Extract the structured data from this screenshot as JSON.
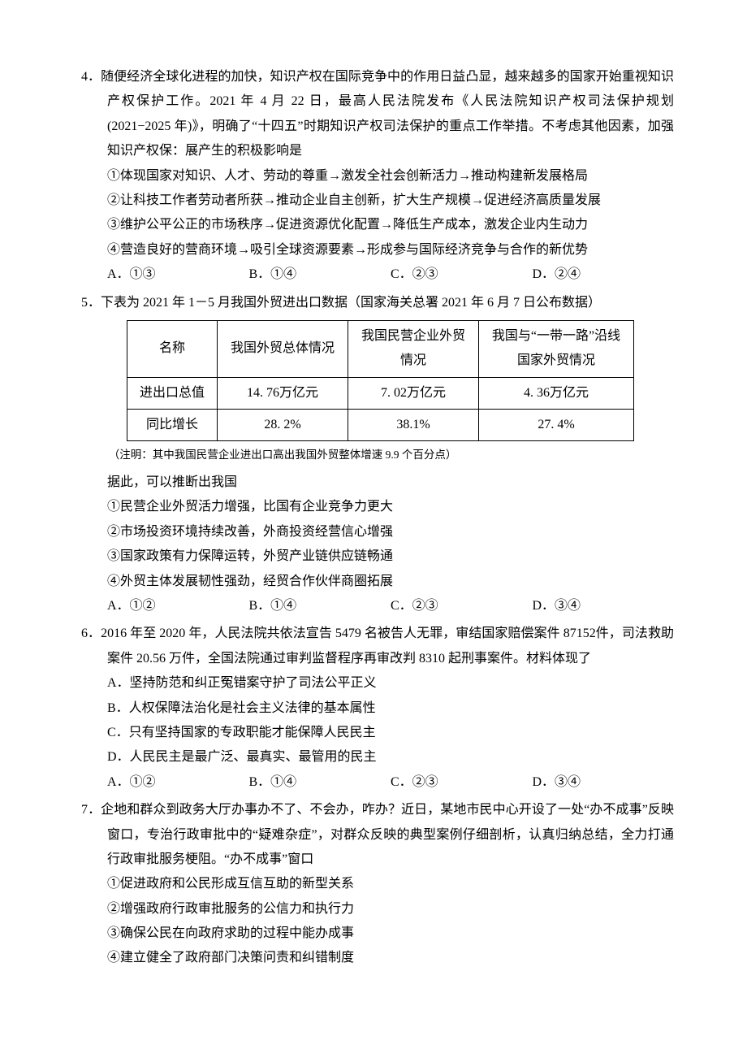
{
  "q4": {
    "num": "4．",
    "stem1": "随便经济全球化进程的加快，知识产权在国际竞争中的作用日益凸显，越来越多的国家开始重视知识产权保护工作。2021 年 4 月 22 日，最高人民法院发布《人民法院知识产权司法保护规划(2021−2025 年)》，明确了“十四五”时期知识产权司法保护的重点工作举措。不考虑其他因素，加强知识产权保：展产生的积极影响是",
    "s1": "①体现国家对知识、人才、劳动的尊重→激发全社会创新活力→推动构建新发展格局",
    "s2": "②让科技工作者劳动者所获→推动企业自主创新，扩大生产规模→促进经济高质量发展",
    "s3": "③维护公平公正的市场秩序→促进资源优化配置→降低生产成本，激发企业内生动力",
    "s4": "④营造良好的营商环境→吸引全球资源要素→形成参与国际经济竞争与合作的新优势",
    "optA": "A．①③",
    "optB": "B．①④",
    "optC": "C．②③",
    "optD": "D．②④"
  },
  "q5": {
    "num": "5．",
    "stem": "下表为 2021 年 1－5 月我国外贸进出口数据（国家海关总署 2021 年 6 月 7 日公布数据）",
    "table": {
      "header": [
        "名称",
        "我国外贸总体情况",
        "我国民营企业外贸情况",
        "我国与“一带一路”沿线国家外贸情况"
      ],
      "row1": [
        "进出口总值",
        "14. 76万亿元",
        "7. 02万亿元",
        "4. 36万亿元"
      ],
      "row2": [
        "同比增长",
        "28. 2%",
        "38.1%",
        "27. 4%"
      ],
      "col_widths": [
        "90px",
        "140px",
        "140px",
        "170px"
      ]
    },
    "note": "（注明：其中我国民营企业进出口高出我国外贸整体增速 9.9 个百分点）",
    "follow": "据此，可以推断出我国",
    "s1": "①民营企业外贸活力增强，比国有企业竞争力更大",
    "s2": "②市场投资环境持续改善，外商投资经营信心增强",
    "s3": "③国家政策有力保障运转，外贸产业链供应链畅通",
    "s4": "④外贸主体发展韧性强劲，经贸合作伙伴商圈拓展",
    "optA": "A．①②",
    "optB": "B．①④",
    "optC": "C．②③",
    "optD": "D．③④"
  },
  "q6": {
    "num": "6．",
    "stem": "2016 年至 2020 年，人民法院共依法宣告 5479 名被告人无罪，审结国家赔偿案件 87152件，司法救助案件 20.56 万件，全国法院通过审判监督程序再审改判 8310 起刑事案件。材料体现了",
    "sA": "A．坚持防范和纠正冤错案守护了司法公平正义",
    "sB": "B．人权保障法治化是社会主义法律的基本属性",
    "sC": "C．只有坚持国家的专政职能才能保障人民民主",
    "sD": "D．人民民主是最广泛、最真实、最管用的民主",
    "optA": "A．①②",
    "optB": "B．①④",
    "optC": "C．②③",
    "optD": "D．③④"
  },
  "q7": {
    "num": "7．",
    "stem": "企地和群众到政务大厅办事办不了、不会办，咋办？近日，某地市民中心开设了一处“办不成事”反映窗口，专治行政审批中的“疑难杂症”，对群众反映的典型案例仔细剖析，认真归纳总结，全力打通行政审批服务梗阻。“办不成事”窗口",
    "s1": "①促进政府和公民形成互信互助的新型关系",
    "s2": "②增强政府行政审批服务的公信力和执行力",
    "s3": "③确保公民在向政府求助的过程中能办成事",
    "s4": "④建立健全了政府部门决策问责和纠错制度"
  }
}
